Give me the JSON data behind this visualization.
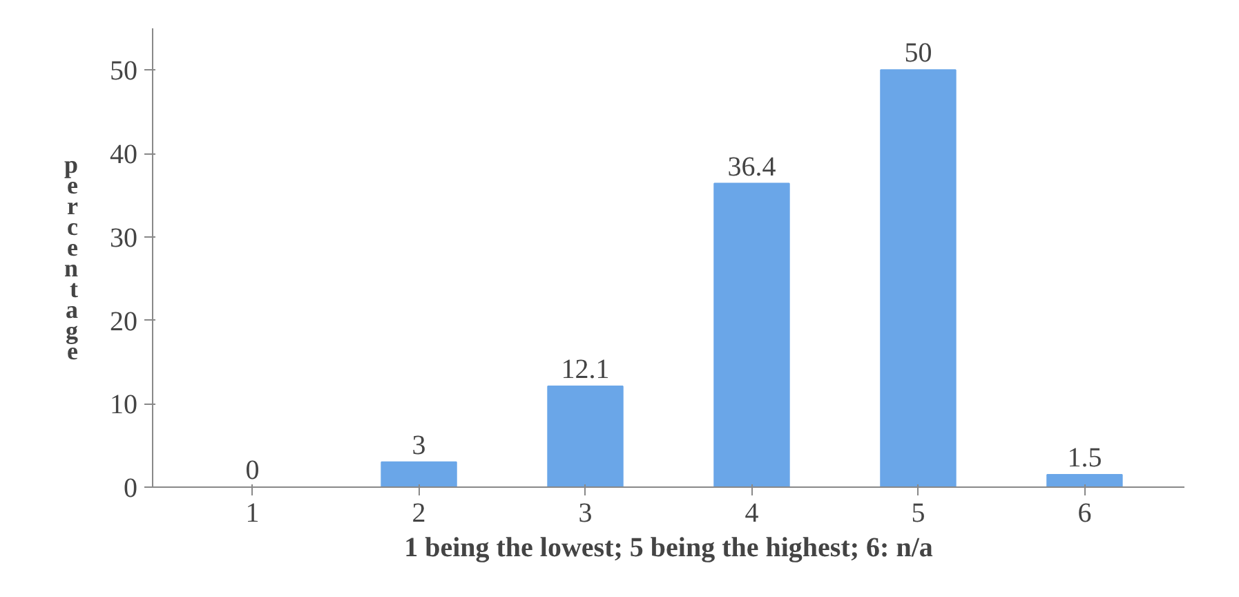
{
  "chart_data": {
    "type": "bar",
    "xlabel": "1 being the lowest; 5 being the highest; 6: n/a",
    "ylabel": "percentage",
    "categories": [
      "1",
      "2",
      "3",
      "4",
      "5",
      "6"
    ],
    "values": [
      0,
      3,
      12.1,
      36.4,
      50,
      1.5
    ],
    "color": "#6aa6e8",
    "ylim": [
      0,
      55
    ],
    "yticks": [
      0,
      10,
      20,
      30,
      40,
      50
    ],
    "data_labels": true,
    "grid": false
  }
}
